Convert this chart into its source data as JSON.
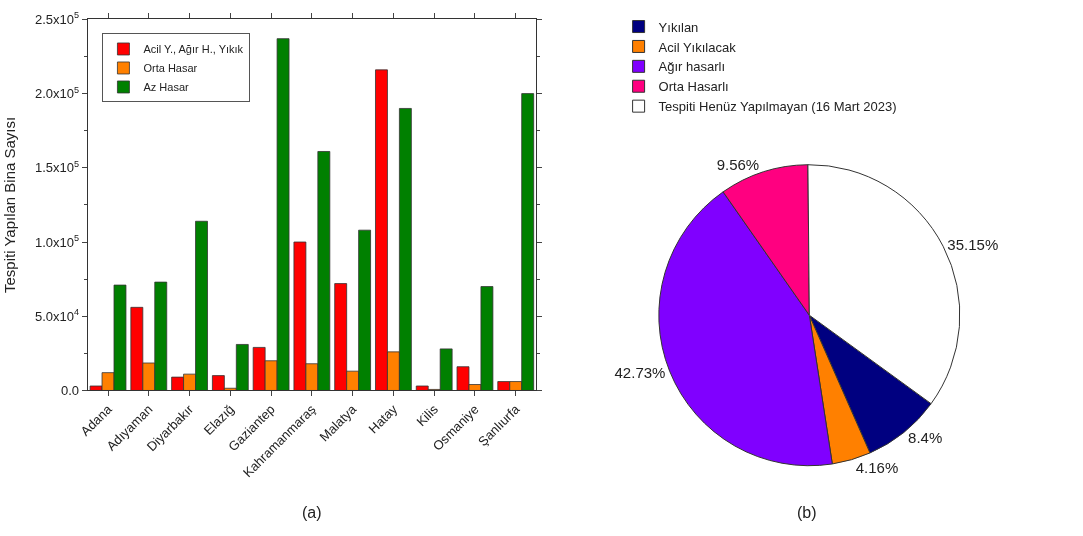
{
  "chart_data": [
    {
      "type": "bar",
      "ylabel": "Tespiti Yapılan Bina Sayısı",
      "annotations": [
        "(a)"
      ],
      "categories": [
        "Adana",
        "Adıyaman",
        "Diyarbakır",
        "Elazığ",
        "Gaziantep",
        "Kahramanmaraş",
        "Malatya",
        "Hatay",
        "Kilis",
        "Osmaniye",
        "Şanlıurfa"
      ],
      "series": [
        {
          "name": "Acil Y., Ağır H., Yıkık",
          "color": "#ff0000",
          "values": [
            3000,
            56000,
            9000,
            10000,
            29000,
            100000,
            72000,
            216000,
            3000,
            16000,
            6000
          ]
        },
        {
          "name": "Orta Hasar",
          "color": "#ff8000",
          "values": [
            12000,
            18500,
            11000,
            1500,
            20000,
            18000,
            13000,
            26000,
            700,
            4000,
            6000
          ]
        },
        {
          "name": "Az Hasar",
          "color": "#008000",
          "values": [
            71000,
            73000,
            114000,
            31000,
            237000,
            161000,
            108000,
            190000,
            28000,
            70000,
            200000
          ]
        }
      ],
      "ylim": [
        0,
        250000
      ],
      "yticks": [
        {
          "value": 0,
          "label": "0.0"
        },
        {
          "value": 50000,
          "label": "5.0x10$^{4}$"
        },
        {
          "value": 100000,
          "label": "1.0x10$^{5}$"
        },
        {
          "value": 150000,
          "label": "1.5x10$^{5}$"
        },
        {
          "value": 200000,
          "label": "2.0x10$^{5}$"
        },
        {
          "value": 250000,
          "label": "2.5x10$^{5}$"
        }
      ],
      "legend": "top left"
    },
    {
      "type": "pie",
      "annotations": [
        "(b)"
      ],
      "categories": [
        "Yıkılan",
        "Acil Yıkılacak",
        "Ağır hasarlı",
        "Orta Hasarlı",
        "Tespiti Henüz Yapılmayan (16 Mart 2023)"
      ],
      "values": [
        8.4,
        4.16,
        42.73,
        9.56,
        35.15
      ],
      "colors": [
        "#000080",
        "#ff8000",
        "#8000ff",
        "#ff0080",
        "#ffffff"
      ],
      "value_labels": [
        "8.4%",
        "4.16%",
        "42.73%",
        "9.56%",
        "35.15%"
      ],
      "legend": "top left"
    }
  ]
}
